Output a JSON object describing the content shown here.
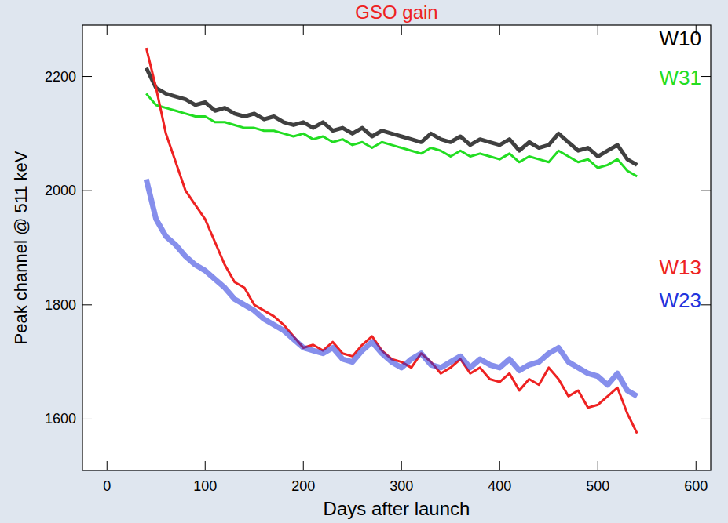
{
  "chart_data": {
    "type": "line",
    "title": "GSO gain",
    "x_label": "Days after launch",
    "y_label": "Peak channel @ 511 keV",
    "x": [
      40,
      50,
      60,
      70,
      80,
      90,
      100,
      110,
      120,
      130,
      140,
      150,
      160,
      170,
      180,
      190,
      200,
      210,
      220,
      230,
      240,
      250,
      260,
      270,
      280,
      290,
      300,
      310,
      320,
      330,
      340,
      350,
      360,
      370,
      380,
      390,
      400,
      410,
      420,
      430,
      440,
      450,
      460,
      470,
      480,
      490,
      500,
      510,
      520,
      530,
      540
    ],
    "series": [
      {
        "name": "W10",
        "color": "#000000",
        "values": [
          2215,
          2180,
          2170,
          2165,
          2160,
          2150,
          2155,
          2140,
          2145,
          2135,
          2130,
          2135,
          2125,
          2130,
          2120,
          2115,
          2120,
          2110,
          2120,
          2105,
          2110,
          2100,
          2110,
          2095,
          2105,
          2100,
          2095,
          2090,
          2085,
          2100,
          2090,
          2085,
          2095,
          2080,
          2090,
          2085,
          2080,
          2090,
          2070,
          2085,
          2075,
          2080,
          2100,
          2085,
          2070,
          2075,
          2060,
          2070,
          2080,
          2055,
          2045
        ]
      },
      {
        "name": "W31",
        "color": "#22dd22",
        "values": [
          2170,
          2150,
          2145,
          2140,
          2135,
          2130,
          2130,
          2120,
          2120,
          2115,
          2110,
          2110,
          2105,
          2105,
          2100,
          2095,
          2100,
          2090,
          2095,
          2085,
          2090,
          2080,
          2085,
          2075,
          2085,
          2080,
          2075,
          2070,
          2065,
          2075,
          2070,
          2060,
          2070,
          2060,
          2065,
          2060,
          2055,
          2065,
          2050,
          2060,
          2055,
          2050,
          2070,
          2060,
          2050,
          2055,
          2040,
          2045,
          2055,
          2035,
          2025
        ]
      },
      {
        "name": "W13",
        "color": "#ee2222",
        "values": [
          2250,
          2180,
          2100,
          2050,
          2000,
          1975,
          1950,
          1910,
          1870,
          1840,
          1830,
          1800,
          1790,
          1780,
          1765,
          1745,
          1725,
          1730,
          1720,
          1735,
          1715,
          1710,
          1730,
          1745,
          1720,
          1705,
          1700,
          1690,
          1715,
          1700,
          1680,
          1690,
          1705,
          1680,
          1690,
          1670,
          1665,
          1680,
          1650,
          1670,
          1660,
          1690,
          1670,
          1640,
          1650,
          1620,
          1625,
          1640,
          1655,
          1610,
          1575
        ]
      },
      {
        "name": "W23",
        "color": "#2233dd",
        "values": [
          2020,
          1950,
          1920,
          1905,
          1885,
          1870,
          1860,
          1845,
          1830,
          1810,
          1800,
          1790,
          1775,
          1765,
          1755,
          1740,
          1725,
          1720,
          1715,
          1725,
          1705,
          1700,
          1720,
          1735,
          1715,
          1700,
          1690,
          1705,
          1715,
          1695,
          1690,
          1700,
          1710,
          1690,
          1705,
          1695,
          1690,
          1705,
          1685,
          1695,
          1700,
          1715,
          1725,
          1700,
          1690,
          1680,
          1675,
          1660,
          1680,
          1650,
          1640
        ]
      }
    ],
    "xlim": [
      -25,
      615
    ],
    "xticks": [
      0,
      100,
      200,
      300,
      400,
      500,
      600
    ],
    "ylim": [
      1510,
      2290
    ],
    "yticks": [
      1600,
      1800,
      2000,
      2200
    ],
    "grid": false,
    "legend": "right"
  }
}
